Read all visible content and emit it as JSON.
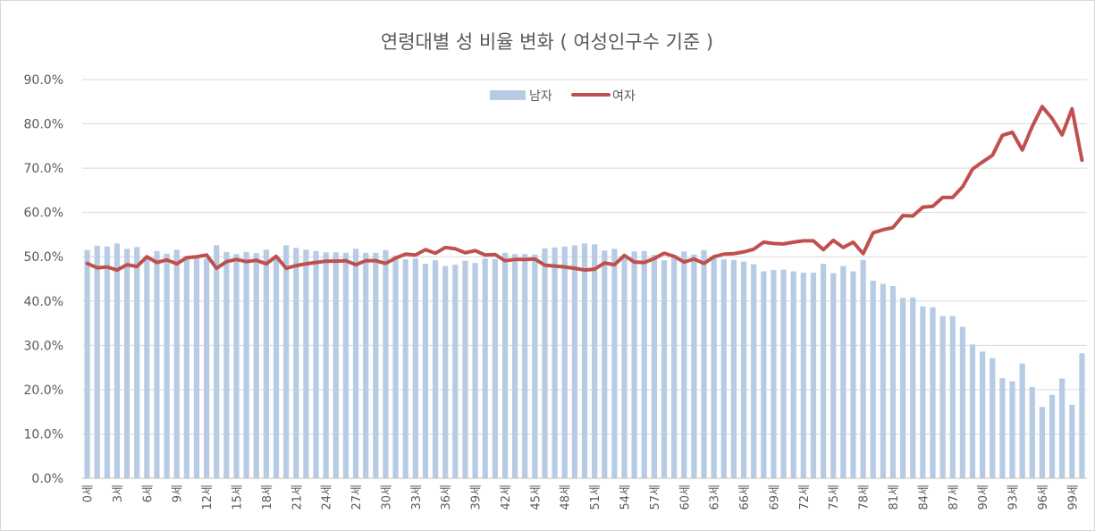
{
  "chart_data": {
    "type": "bar+line",
    "title": "연령대별 성 비율 변화 ( 여성인구수 기준 )",
    "xlabel": "",
    "ylabel": "",
    "ylim": [
      0,
      90
    ],
    "y_ticks": [
      "0.0%",
      "10.0%",
      "20.0%",
      "30.0%",
      "40.0%",
      "50.0%",
      "60.0%",
      "70.0%",
      "80.0%",
      "90.0%"
    ],
    "x_tick_labels": [
      "0세",
      "3세",
      "6세",
      "9세",
      "12세",
      "15세",
      "18세",
      "21세",
      "24세",
      "27세",
      "30세",
      "33세",
      "36세",
      "39세",
      "42세",
      "45세",
      "48세",
      "51세",
      "54세",
      "57세",
      "60세",
      "63세",
      "66세",
      "69세",
      "72세",
      "75세",
      "78세",
      "81세",
      "84세",
      "87세",
      "90세",
      "93세",
      "96세",
      "99세"
    ],
    "legend_position": "top-center",
    "grid": true,
    "colors": {
      "bar": "#b7cce4",
      "line": "#c0504d",
      "grid": "#d9d9d9",
      "axis": "#bfbfbf",
      "text": "#595959"
    },
    "series": [
      {
        "name": "남자",
        "type": "bar",
        "values": [
          51.5,
          52.5,
          52.3,
          53.0,
          51.8,
          52.2,
          50.0,
          51.3,
          50.7,
          51.6,
          50.2,
          50.0,
          49.6,
          52.6,
          51.1,
          50.6,
          51.1,
          50.8,
          51.6,
          49.9,
          52.6,
          52.0,
          51.6,
          51.3,
          51.0,
          51.0,
          50.9,
          51.8,
          50.9,
          50.9,
          51.5,
          50.3,
          49.4,
          49.6,
          48.4,
          49.2,
          47.9,
          48.2,
          49.1,
          48.6,
          49.6,
          49.5,
          50.9,
          50.6,
          50.6,
          50.5,
          51.9,
          52.1,
          52.3,
          52.6,
          53.0,
          52.8,
          51.4,
          51.8,
          49.7,
          51.2,
          51.3,
          50.4,
          49.2,
          49.9,
          51.2,
          50.5,
          51.5,
          50.0,
          49.4,
          49.3,
          48.9,
          48.3,
          46.7,
          47.0,
          47.1,
          46.7,
          46.4,
          46.4,
          48.4,
          46.3,
          47.9,
          46.7,
          49.3,
          44.6,
          43.9,
          43.4,
          40.7,
          40.8,
          38.8,
          38.6,
          36.6,
          36.6,
          34.2,
          30.2,
          28.6,
          27.1,
          22.6,
          21.9,
          25.9,
          20.6,
          16.1,
          18.8,
          22.5,
          16.6,
          28.2
        ]
      },
      {
        "name": "여자",
        "type": "line",
        "values": [
          48.5,
          47.5,
          47.7,
          47.0,
          48.2,
          47.8,
          50.0,
          48.7,
          49.3,
          48.4,
          49.8,
          50.0,
          50.4,
          47.4,
          48.9,
          49.4,
          48.9,
          49.2,
          48.4,
          50.1,
          47.4,
          48.0,
          48.4,
          48.7,
          49.0,
          49.0,
          49.1,
          48.2,
          49.1,
          49.1,
          48.5,
          49.7,
          50.6,
          50.4,
          51.6,
          50.8,
          52.1,
          51.8,
          50.9,
          51.4,
          50.4,
          50.5,
          49.1,
          49.4,
          49.4,
          49.5,
          48.1,
          47.9,
          47.7,
          47.4,
          47.0,
          47.2,
          48.6,
          48.2,
          50.3,
          48.8,
          48.7,
          49.6,
          50.8,
          50.1,
          48.8,
          49.5,
          48.5,
          50.0,
          50.6,
          50.7,
          51.1,
          51.7,
          53.3,
          53.0,
          52.9,
          53.3,
          53.6,
          53.6,
          51.6,
          53.7,
          52.1,
          53.3,
          50.7,
          55.4,
          56.1,
          56.6,
          59.3,
          59.2,
          61.2,
          61.4,
          63.4,
          63.4,
          65.8,
          69.8,
          71.4,
          72.9,
          77.4,
          78.1,
          74.1,
          79.4,
          83.9,
          81.2,
          77.5,
          83.4,
          71.8
        ]
      }
    ]
  }
}
